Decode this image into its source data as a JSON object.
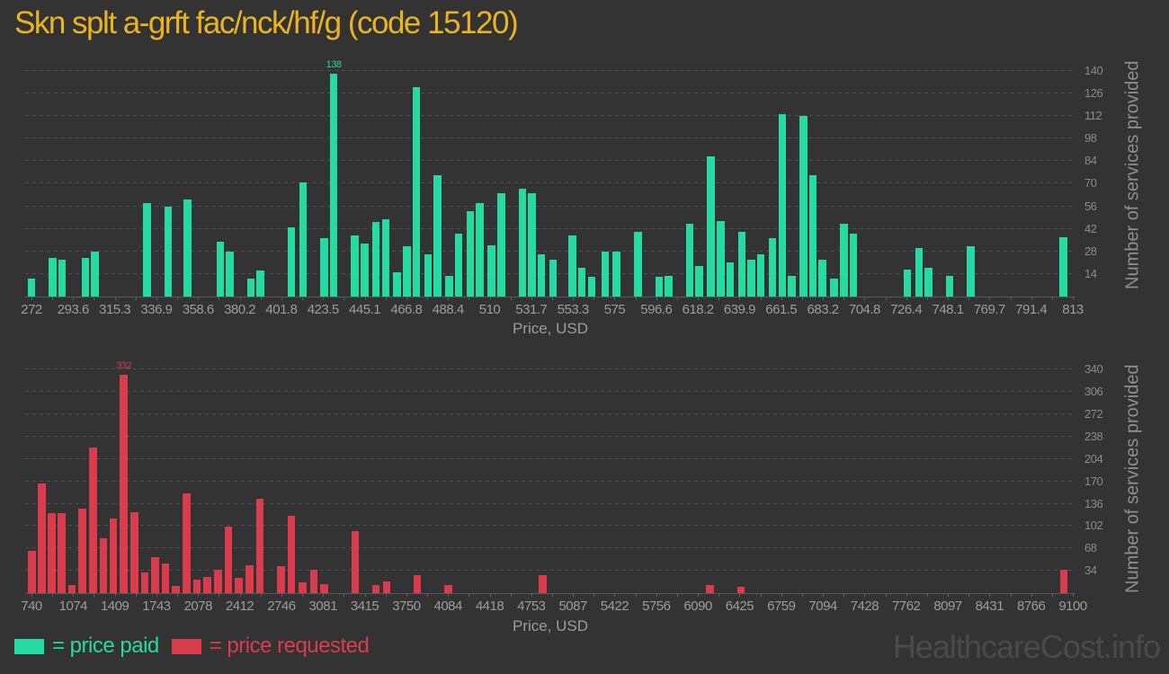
{
  "title": "Skn splt a-grft fac/nck/hf/g (code 15120)",
  "watermark": "HealthcareCost.info",
  "legend": {
    "paid_label": "= price paid",
    "requested_label": "= price requested"
  },
  "colors": {
    "background": "#333333",
    "paid": "#25dba1",
    "requested": "#d93c4c",
    "title": "#e9b41f",
    "tick_label": "#9c9c9c",
    "y_tick_label": "#8b8b8b",
    "axis_title": "#8f8f8f",
    "gridline": "#4e4e4e",
    "watermark": "#4a4a4a"
  },
  "chart_data": [
    {
      "type": "bar",
      "name": "price paid",
      "color_key": "paid",
      "xlabel": "Price, USD",
      "ylabel": "Number of services provided",
      "xlim": [
        272,
        813
      ],
      "ylim": [
        0,
        151
      ],
      "grid": "dashed-horizontal",
      "legend_position": "bottom",
      "x_ticks": [
        "272",
        "293.6",
        "315.3",
        "336.9",
        "358.6",
        "380.2",
        "401.8",
        "423.5",
        "445.1",
        "466.8",
        "488.4",
        "510",
        "531.7",
        "553.3",
        "575",
        "596.6",
        "618.2",
        "639.9",
        "661.5",
        "683.2",
        "704.8",
        "726.4",
        "748.1",
        "769.7",
        "791.4",
        "813"
      ],
      "y_ticks": [
        14,
        28,
        42,
        56,
        70,
        84,
        98,
        112,
        126,
        140
      ],
      "peak_label": "138",
      "bars": [
        [
          272,
          11
        ],
        [
          283,
          24
        ],
        [
          288,
          23
        ],
        [
          300,
          24
        ],
        [
          305,
          28
        ],
        [
          332,
          58
        ],
        [
          343,
          56
        ],
        [
          353,
          60
        ],
        [
          370,
          34
        ],
        [
          375,
          28
        ],
        [
          386,
          11
        ],
        [
          391,
          16
        ],
        [
          407,
          43
        ],
        [
          413,
          71
        ],
        [
          424,
          36
        ],
        [
          429,
          138
        ],
        [
          440,
          38
        ],
        [
          445,
          33
        ],
        [
          451,
          46
        ],
        [
          456,
          48
        ],
        [
          462,
          15
        ],
        [
          467,
          31
        ],
        [
          472,
          130
        ],
        [
          478,
          26
        ],
        [
          483,
          75
        ],
        [
          489,
          13
        ],
        [
          494,
          39
        ],
        [
          500,
          53
        ],
        [
          505,
          58
        ],
        [
          511,
          32
        ],
        [
          516,
          64
        ],
        [
          527,
          67
        ],
        [
          532,
          64
        ],
        [
          537,
          26
        ],
        [
          543,
          23
        ],
        [
          553,
          38
        ],
        [
          558,
          18
        ],
        [
          563,
          12
        ],
        [
          570,
          28
        ],
        [
          576,
          28
        ],
        [
          587,
          40
        ],
        [
          598,
          12
        ],
        [
          603,
          13
        ],
        [
          614,
          45
        ],
        [
          619,
          19
        ],
        [
          625,
          87
        ],
        [
          630,
          47
        ],
        [
          635,
          21
        ],
        [
          641,
          40
        ],
        [
          646,
          23
        ],
        [
          651,
          26
        ],
        [
          657,
          36
        ],
        [
          662,
          113
        ],
        [
          667,
          13
        ],
        [
          673,
          112
        ],
        [
          678,
          75
        ],
        [
          683,
          23
        ],
        [
          689,
          11
        ],
        [
          694,
          45
        ],
        [
          699,
          39
        ],
        [
          727,
          17
        ],
        [
          733,
          30
        ],
        [
          738,
          18
        ],
        [
          749,
          13
        ],
        [
          760,
          31
        ],
        [
          808,
          37
        ]
      ]
    },
    {
      "type": "bar",
      "name": "price requested",
      "color_key": "requested",
      "xlabel": "Price, USD",
      "ylabel": "Number of services provided",
      "xlim": [
        740,
        9100
      ],
      "ylim": [
        0,
        350
      ],
      "grid": "dashed-horizontal",
      "legend_position": "bottom",
      "x_ticks": [
        "740",
        "1074",
        "1409",
        "1743",
        "2078",
        "2412",
        "2746",
        "3081",
        "3415",
        "3750",
        "4084",
        "4418",
        "4753",
        "5087",
        "5422",
        "5756",
        "6090",
        "6425",
        "6759",
        "7094",
        "7428",
        "7762",
        "8097",
        "8431",
        "8766",
        "9100"
      ],
      "y_ticks": [
        34,
        68,
        102,
        136,
        170,
        204,
        238,
        272,
        306,
        340
      ],
      "peak_label": "332",
      "bars": [
        [
          745,
          64
        ],
        [
          824,
          167
        ],
        [
          904,
          122
        ],
        [
          983,
          122
        ],
        [
          1065,
          13
        ],
        [
          1149,
          128
        ],
        [
          1233,
          221
        ],
        [
          1318,
          83
        ],
        [
          1397,
          113
        ],
        [
          1481,
          332
        ],
        [
          1565,
          123
        ],
        [
          1650,
          32
        ],
        [
          1734,
          55
        ],
        [
          1816,
          45
        ],
        [
          1900,
          11
        ],
        [
          1984,
          152
        ],
        [
          2068,
          21
        ],
        [
          2153,
          24
        ],
        [
          2239,
          35
        ],
        [
          2321,
          101
        ],
        [
          2405,
          23
        ],
        [
          2489,
          42
        ],
        [
          2574,
          144
        ],
        [
          2742,
          41
        ],
        [
          2826,
          117
        ],
        [
          2918,
          17
        ],
        [
          3007,
          36
        ],
        [
          3089,
          14
        ],
        [
          3339,
          94
        ],
        [
          3505,
          12
        ],
        [
          3590,
          18
        ],
        [
          3837,
          28
        ],
        [
          4085,
          12
        ],
        [
          4846,
          28
        ],
        [
          6188,
          12
        ],
        [
          6436,
          10
        ],
        [
          9027,
          35
        ]
      ]
    }
  ]
}
